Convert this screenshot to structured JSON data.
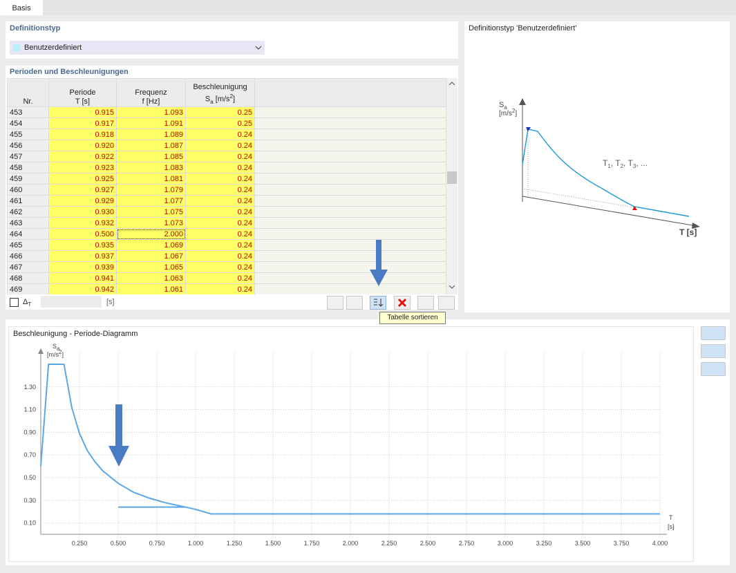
{
  "tabs": [
    "Basis"
  ],
  "definition": {
    "title": "Definitionstyp",
    "selected": "Benutzerdefiniert"
  },
  "table": {
    "title": "Perioden und Beschleunigungen",
    "headers": [
      {
        "line1": "Nr.",
        "line2": []
      },
      {
        "line1": "Periode",
        "line2": [
          {
            "t": "T [s]"
          }
        ]
      },
      {
        "line1": "Frequenz",
        "line2": [
          {
            "t": "f [Hz]"
          }
        ]
      },
      {
        "line1": "Beschleunigung",
        "line2": [
          {
            "t": "S"
          },
          {
            "t": "a",
            "s": "sub"
          },
          {
            "t": " [m/s"
          },
          {
            "t": "2",
            "s": "sup"
          },
          {
            "t": "]"
          }
        ]
      }
    ],
    "rows": [
      [
        "453",
        "0.915",
        "1.093",
        "0.25"
      ],
      [
        "454",
        "0.917",
        "1.091",
        "0.25"
      ],
      [
        "455",
        "0.918",
        "1.089",
        "0.24"
      ],
      [
        "456",
        "0.920",
        "1.087",
        "0.24"
      ],
      [
        "457",
        "0.922",
        "1.085",
        "0.24"
      ],
      [
        "458",
        "0.923",
        "1.083",
        "0.24"
      ],
      [
        "459",
        "0.925",
        "1.081",
        "0.24"
      ],
      [
        "460",
        "0.927",
        "1.079",
        "0.24"
      ],
      [
        "461",
        "0.929",
        "1.077",
        "0.24"
      ],
      [
        "462",
        "0.930",
        "1.075",
        "0.24"
      ],
      [
        "463",
        "0.932",
        "1.073",
        "0.24"
      ],
      [
        "464",
        "0.500",
        "2.000",
        "0.24"
      ],
      [
        "465",
        "0.935",
        "1.069",
        "0.24"
      ],
      [
        "466",
        "0.937",
        "1.067",
        "0.24"
      ],
      [
        "467",
        "0.939",
        "1.065",
        "0.24"
      ],
      [
        "468",
        "0.941",
        "1.063",
        "0.24"
      ],
      [
        "469",
        "0.942",
        "1.061",
        "0.24"
      ]
    ],
    "delta_label": [
      {
        "t": "Δ"
      },
      {
        "t": "T",
        "s": "sub"
      }
    ],
    "delta_unit": "[s]",
    "tooltip": "Tabelle sortieren"
  },
  "preview": {
    "title": "Definitionstyp 'Benutzerdefiniert'",
    "y_label": [
      {
        "t": "S"
      },
      {
        "t": "a",
        "s": "sub"
      }
    ],
    "y_unit": [
      {
        "t": "[m/s"
      },
      {
        "t": "2",
        "s": "sup"
      },
      {
        "t": "]"
      }
    ],
    "curve_label": [
      {
        "t": "T"
      },
      {
        "t": "1",
        "s": "sub"
      },
      {
        "t": ", T"
      },
      {
        "t": "2",
        "s": "sub"
      },
      {
        "t": ", T"
      },
      {
        "t": "3",
        "s": "sub"
      },
      {
        "t": ", ..."
      }
    ],
    "x_label": "T [s]"
  },
  "chart_data": {
    "type": "line",
    "title": "Beschleunigung - Periode-Diagramm",
    "y_label": [
      {
        "t": "S"
      },
      {
        "t": "a",
        "s": "sub"
      }
    ],
    "y_unit": [
      {
        "t": "[m/s"
      },
      {
        "t": "2",
        "s": "sup"
      },
      {
        "t": "]"
      }
    ],
    "x_label": "T",
    "x_unit": "[s]",
    "color": "#5aa7e8",
    "x": [
      0,
      0.05,
      0.15,
      0.2,
      0.25,
      0.3,
      0.35,
      0.4,
      0.5,
      0.6,
      0.7,
      0.8,
      0.9,
      0.932,
      0.5,
      0.935,
      1.0,
      1.1,
      4.0
    ],
    "values": [
      0.6,
      1.5,
      1.5,
      1.12,
      0.89,
      0.74,
      0.64,
      0.56,
      0.45,
      0.37,
      0.32,
      0.28,
      0.25,
      0.24,
      0.24,
      0.24,
      0.22,
      0.18,
      0.18
    ],
    "xlim": [
      0,
      4
    ],
    "ylim": [
      0,
      1.6
    ],
    "grid": true,
    "xticks": [
      {
        "value": 0.25,
        "label": "0.250"
      },
      {
        "value": 0.5,
        "label": "0.500"
      },
      {
        "value": 0.75,
        "label": "0.750"
      },
      {
        "value": 1,
        "label": "1.000"
      },
      {
        "value": 1.25,
        "label": "1.250"
      },
      {
        "value": 1.5,
        "label": "1.500"
      },
      {
        "value": 1.75,
        "label": "1.750"
      },
      {
        "value": 2,
        "label": "2.000"
      },
      {
        "value": 2.25,
        "label": "2.250"
      },
      {
        "value": 2.5,
        "label": "2.500"
      },
      {
        "value": 2.75,
        "label": "2.750"
      },
      {
        "value": 3,
        "label": "3.000"
      },
      {
        "value": 3.25,
        "label": "3.250"
      },
      {
        "value": 3.5,
        "label": "3.500"
      },
      {
        "value": 3.75,
        "label": "3.750"
      },
      {
        "value": 4,
        "label": "4.000"
      }
    ],
    "yticks": [
      {
        "value": 0.1,
        "label": "0.10"
      },
      {
        "value": 0.3,
        "label": "0.30"
      },
      {
        "value": 0.5,
        "label": "0.50"
      },
      {
        "value": 0.7,
        "label": "0.70"
      },
      {
        "value": 0.9,
        "label": "0.90"
      },
      {
        "value": 1.1,
        "label": "1.10"
      },
      {
        "value": 1.3,
        "label": "1.30"
      }
    ]
  }
}
